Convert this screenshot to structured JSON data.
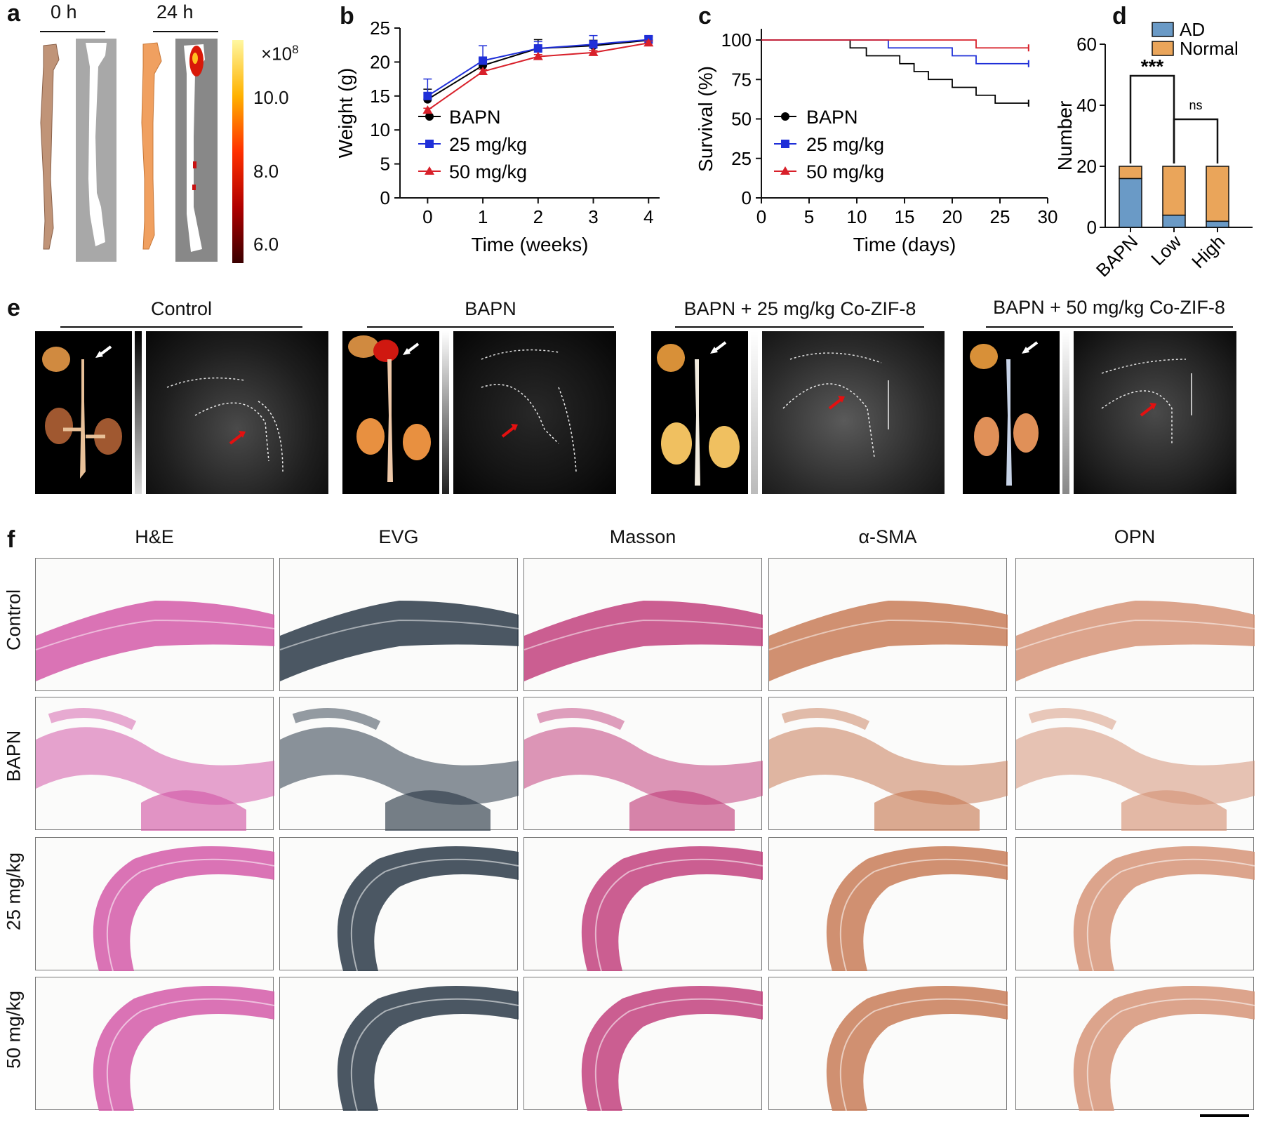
{
  "panel_labels": {
    "a": "a",
    "b": "b",
    "c": "c",
    "d": "d",
    "e": "e",
    "f": "f"
  },
  "panel_a": {
    "time_0": "0 h",
    "time_24": "24 h",
    "colorbar_scale": "×10",
    "colorbar_exponent": "8",
    "colorbar_ticks": [
      "10.0",
      "8.0",
      "6.0"
    ],
    "colorbar_colors": [
      "#fff7a0",
      "#ffb200",
      "#ff3000",
      "#b00000",
      "#3a0000"
    ]
  },
  "panel_e": {
    "titles": [
      "Control",
      "BAPN",
      "BAPN + 25 mg/kg Co-ZIF-8",
      "BAPN + 50 mg/kg Co-ZIF-8"
    ]
  },
  "panel_f": {
    "columns": [
      "H&E",
      "EVG",
      "Masson",
      "α-SMA",
      "OPN"
    ],
    "rows": [
      "Control",
      "BAPN",
      "25 mg/kg",
      "50 mg/kg"
    ],
    "stain_colors": {
      "he": "#d35aa8",
      "evg": "#2c3a48",
      "masson": "#c2427e",
      "sma": "#c87c58",
      "opn": "#d69478"
    }
  },
  "chart_data": [
    {
      "id": "b",
      "type": "line",
      "xlabel": "Time (weeks)",
      "ylabel": "Weight (g)",
      "x": [
        0,
        1,
        2,
        3,
        4
      ],
      "xlim": [
        -0.5,
        4.2
      ],
      "ylim": [
        0,
        25
      ],
      "xticks": [
        "0",
        "1",
        "2",
        "3",
        "4"
      ],
      "yticks": [
        "0",
        "5",
        "10",
        "15",
        "20",
        "25"
      ],
      "series": [
        {
          "name": "BAPN",
          "color": "#000000",
          "marker": "circle",
          "values": [
            14.5,
            19.5,
            22.0,
            22.4,
            23.2
          ],
          "errors": [
            1.5,
            1.0,
            1.3,
            0.8,
            0.5
          ]
        },
        {
          "name": "25 mg/kg",
          "color": "#1f2fd8",
          "marker": "square",
          "values": [
            15.0,
            20.2,
            22.0,
            22.6,
            23.3
          ],
          "errors": [
            2.5,
            2.2,
            1.0,
            1.3,
            0.6
          ]
        },
        {
          "name": "50 mg/kg",
          "color": "#d8202a",
          "marker": "triangle",
          "values": [
            12.9,
            18.6,
            20.8,
            21.4,
            22.8
          ],
          "errors": [
            0.3,
            0.3,
            0.3,
            0.3,
            0.3
          ]
        }
      ]
    },
    {
      "id": "c",
      "type": "line",
      "xlabel": "Time (days)",
      "ylabel": "Survival (%)",
      "xlim": [
        0,
        30
      ],
      "ylim": [
        0,
        100
      ],
      "xticks": [
        "0",
        "5",
        "10",
        "15",
        "20",
        "25",
        "30"
      ],
      "yticks": [
        "0",
        "25",
        "50",
        "75",
        "100"
      ],
      "series": [
        {
          "name": "BAPN",
          "color": "#000000",
          "marker": "circle",
          "steps": [
            [
              0,
              100
            ],
            [
              9.3,
              95
            ],
            [
              11,
              90
            ],
            [
              14.5,
              85
            ],
            [
              16,
              80
            ],
            [
              17.5,
              75
            ],
            [
              20,
              70
            ],
            [
              22.5,
              65
            ],
            [
              24.5,
              60
            ],
            [
              28,
              60
            ]
          ]
        },
        {
          "name": "25 mg/kg",
          "color": "#1f2fd8",
          "marker": "square",
          "steps": [
            [
              0,
              100
            ],
            [
              13.3,
              95
            ],
            [
              20,
              90
            ],
            [
              22.5,
              85
            ],
            [
              28,
              85
            ]
          ]
        },
        {
          "name": "50 mg/kg",
          "color": "#d8202a",
          "marker": "triangle",
          "steps": [
            [
              0,
              100
            ],
            [
              22.5,
              95
            ],
            [
              28,
              95
            ]
          ]
        }
      ]
    },
    {
      "id": "d",
      "type": "bar",
      "stacked": true,
      "ylabel": "Number",
      "categories": [
        "BAPN",
        "Low",
        "High"
      ],
      "ylim": [
        0,
        60
      ],
      "yticks": [
        "0",
        "20",
        "40",
        "60"
      ],
      "series": [
        {
          "name": "AD",
          "color": "#6a9ac6",
          "values": [
            16,
            4,
            2
          ]
        },
        {
          "name": "Normal",
          "color": "#eaa55a",
          "values": [
            4,
            16,
            18
          ]
        }
      ],
      "annotations": {
        "sig_1": "***",
        "sig_2": "ns"
      }
    }
  ]
}
